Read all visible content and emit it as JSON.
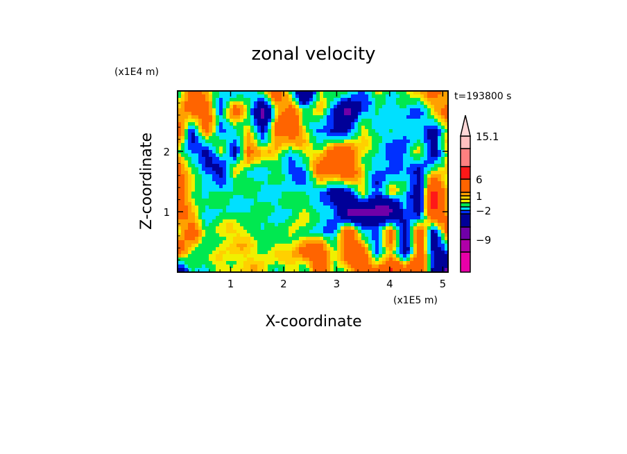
{
  "chart_data": {
    "type": "heatmap",
    "title": "zonal velocity",
    "xlabel": "X-coordinate",
    "ylabel": "Z-coordinate",
    "x_scale_label": "(x1E5 m)",
    "y_scale_label": "(x1E4 m)",
    "time_label": "t=193800 s",
    "xlim": [
      0,
      5.1
    ],
    "ylim": [
      0,
      3.0
    ],
    "x_ticks": [
      {
        "v": 1,
        "label": "1"
      },
      {
        "v": 2,
        "label": "2"
      },
      {
        "v": 3,
        "label": "3"
      },
      {
        "v": 4,
        "label": "4"
      },
      {
        "v": 5,
        "label": "5"
      }
    ],
    "y_ticks": [
      {
        "v": 1,
        "label": "1"
      },
      {
        "v": 2,
        "label": "2"
      }
    ],
    "levels": [
      -12,
      -9,
      -6,
      -3,
      -2,
      -1,
      0,
      0.5,
      1,
      2,
      6,
      9,
      12,
      15.1
    ],
    "colors": [
      "#e800a8",
      "#b000a8",
      "#7000a8",
      "#000098",
      "#0030ff",
      "#00e0ff",
      "#00e850",
      "#f0f000",
      "#ffd000",
      "#ffa000",
      "#ff6400",
      "#ff1818",
      "#ff8080",
      "#ffc0c0",
      "#ffd8d8"
    ],
    "colorbar_labels": [
      {
        "level_index": 13,
        "label": "15.1"
      },
      {
        "level_index": 10,
        "label": "6"
      },
      {
        "level_index": 8,
        "label": "1"
      },
      {
        "level_index": 4,
        "label": "−2"
      },
      {
        "level_index": 1,
        "label": "−9"
      }
    ],
    "values": [
      [
        -1,
        3.5,
        0.5,
        -1,
        -2.5,
        -1,
        0.5,
        3.5,
        -1,
        -7,
        0.5,
        0.5,
        -1,
        -2.5,
        0.5,
        -1,
        0.5,
        0.5,
        3.5,
        0.5
      ],
      [
        0.5,
        3.5,
        3.5,
        -2.5,
        3.5,
        -1,
        -7,
        0.5,
        3.5,
        -1,
        0.5,
        -2.5,
        -7,
        -2.5,
        -1,
        -2.5,
        -1,
        -2.5,
        0.5,
        3.5
      ],
      [
        3.5,
        -4,
        3.5,
        -2.5,
        -1,
        0.5,
        -4,
        3.5,
        3.5,
        0.5,
        -2.5,
        -4,
        -2.5,
        0.5,
        -1,
        -1,
        -2.5,
        -1,
        -4,
        0.5
      ],
      [
        0.5,
        -2.5,
        -4,
        0.5,
        -4,
        3.5,
        0.5,
        0.5,
        -1,
        0.5,
        0.5,
        3.5,
        3.5,
        0.5,
        -1,
        -2.5,
        -2.5,
        0.5,
        -4,
        0.5
      ],
      [
        3.5,
        0.5,
        -2.5,
        -4,
        0.5,
        -1,
        -1,
        -1,
        -2.5,
        -2.5,
        3.5,
        3.5,
        3.5,
        0.5,
        -2.5,
        -2.5,
        -1,
        -4,
        0.5,
        0.5
      ],
      [
        3.5,
        0.5,
        -1,
        -1,
        -1,
        -1,
        -1,
        -1,
        -1,
        -1,
        -2.5,
        -4,
        -2.5,
        0.5,
        -2.5,
        0.5,
        -1,
        -4,
        7,
        0.5
      ],
      [
        3.5,
        0.5,
        -1,
        -1,
        -1,
        -1,
        -1,
        -1,
        -1,
        0.5,
        -1,
        -2.5,
        -7,
        -7,
        -7,
        -7,
        -2.5,
        -4,
        7,
        0.5
      ],
      [
        0.5,
        3.5,
        -1,
        0.5,
        0.5,
        0.5,
        -1,
        -1,
        0.5,
        -1,
        -1,
        -2.5,
        3.5,
        -1,
        -2.5,
        3.5,
        -4,
        3.5,
        -4,
        3.5
      ],
      [
        3.5,
        0.5,
        -1,
        0.5,
        0.5,
        0.5,
        0.5,
        0.5,
        0.5,
        3.5,
        3.5,
        0.5,
        3.5,
        3.5,
        -2.5,
        0.5,
        -4,
        3.5,
        -4,
        -2.5
      ],
      [
        -7,
        -1,
        -1,
        0.5,
        0.5,
        0.5,
        0.5,
        -1,
        0.5,
        -1,
        3.5,
        -1,
        0.5,
        3.5,
        3.5,
        7,
        3.5,
        7,
        -4,
        -7
      ]
    ]
  }
}
